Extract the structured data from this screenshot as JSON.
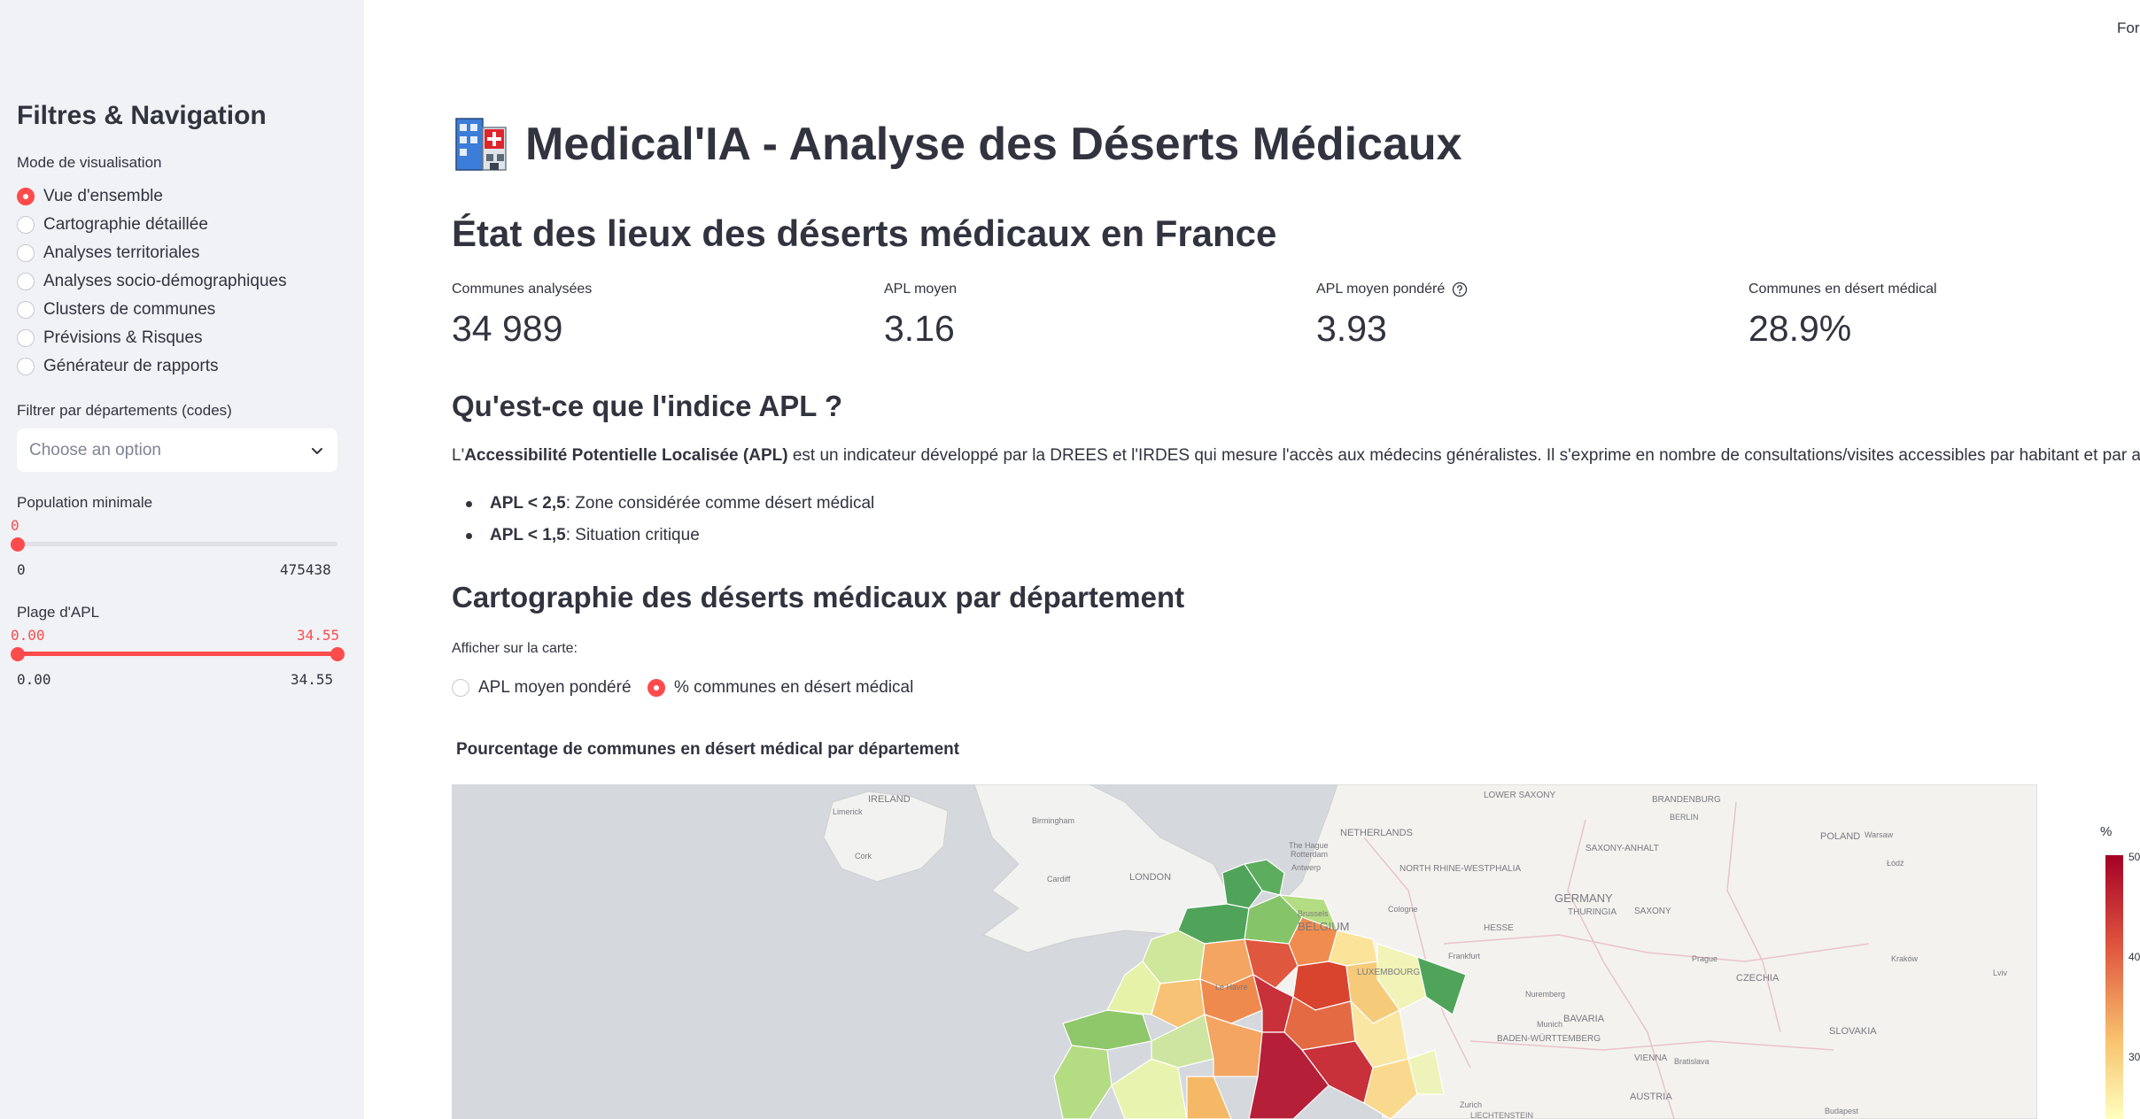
{
  "sidebar": {
    "title": "Filtres & Navigation",
    "mode_label": "Mode de visualisation",
    "modes": [
      {
        "label": "Vue d'ensemble",
        "selected": true
      },
      {
        "label": "Cartographie détaillée",
        "selected": false
      },
      {
        "label": "Analyses territoriales",
        "selected": false
      },
      {
        "label": "Analyses socio-démographiques",
        "selected": false
      },
      {
        "label": "Clusters de communes",
        "selected": false
      },
      {
        "label": "Prévisions & Risques",
        "selected": false
      },
      {
        "label": "Générateur de rapports",
        "selected": false
      }
    ],
    "dept_filter_label": "Filtrer par départements (codes)",
    "dept_filter_placeholder": "Choose an option",
    "population": {
      "label": "Population minimale",
      "value": "0",
      "min": "0",
      "max": "475438",
      "value_fraction": 0
    },
    "apl": {
      "label": "Plage d'APL",
      "low": "0.00",
      "high": "34.55",
      "min": "0.00",
      "max": "34.55"
    }
  },
  "header": {
    "top_right_text": "For",
    "title": "Medical'IA - Analyse des Déserts Médicaux",
    "title_icon": "hospital-icon"
  },
  "overview": {
    "heading": "État des lieux des déserts médicaux en France",
    "metrics": [
      {
        "label": "Communes analysées",
        "value": "34 989",
        "help": false
      },
      {
        "label": "APL moyen",
        "value": "3.16",
        "help": false
      },
      {
        "label": "APL moyen pondéré",
        "value": "3.93",
        "help": true
      },
      {
        "label": "Communes en désert médical",
        "value": "28.9%",
        "help": false
      }
    ]
  },
  "apl_info": {
    "heading": "Qu'est-ce que l'indice APL ?",
    "para_pre": "L'",
    "para_bold": "Accessibilité Potentielle Localisée (APL)",
    "para_post": " est un indicateur développé par la DREES et l'IRDES qui mesure l'accès aux médecins généralistes. Il s'exprime en nombre de consultations/visites accessibles par habitant et par an.",
    "bullets": [
      {
        "bold": "APL < 2,5",
        "text": " : Zone considérée comme désert médical"
      },
      {
        "bold": "APL < 1,5",
        "text": " : Situation critique"
      }
    ]
  },
  "map_section": {
    "heading": "Cartographie des déserts médicaux par département",
    "display_label": "Afficher sur la carte:",
    "options": [
      {
        "label": "APL moyen pondéré",
        "selected": false
      },
      {
        "label": "% communes en désert médical",
        "selected": true
      }
    ],
    "chart_title": "Pourcentage de communes en désert médical par département",
    "colorbar_title": "%",
    "colorbar_ticks": [
      "50",
      "40",
      "30"
    ],
    "place_labels": [
      "IRELAND",
      "Limerick",
      "Cork",
      "Birmingham",
      "LONDON",
      "Cardiff",
      "NETHERLANDS",
      "The Hague",
      "Rotterdam",
      "Antwerp",
      "Brussels",
      "BELGIUM",
      "Cologne",
      "NORTH RHINE-WESTPHALIA",
      "HESSE",
      "Frankfurt",
      "LUXEMBOURG",
      "GERMANY",
      "THURINGIA",
      "SAXONY",
      "SAXONY-ANHALT",
      "LOWER SAXONY",
      "BRANDENBURG",
      "BERLIN",
      "POLAND",
      "Warsaw",
      "Łódź",
      "Kraków",
      "Prague",
      "CZECHIA",
      "Nuremberg",
      "BAVARIA",
      "BADEN-WÜRTTEMBERG",
      "Munich",
      "VIENNA",
      "Bratislava",
      "AUSTRIA",
      "SLOVAKIA",
      "Budapest",
      "Zurich",
      "LIECHTENSTEIN",
      "Le Havre",
      "Lviv"
    ]
  },
  "colors": {
    "accent": "#ff4b4b",
    "sidebar_bg": "#f0f2f6",
    "text": "#31333f"
  }
}
